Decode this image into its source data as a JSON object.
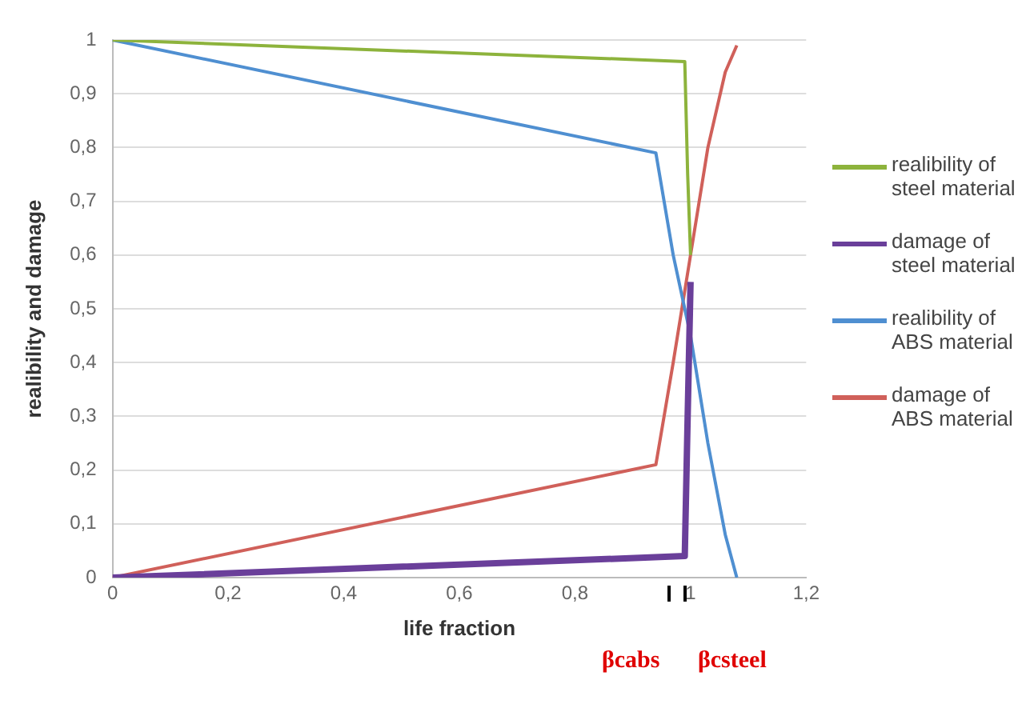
{
  "chart_data": {
    "type": "line",
    "xlabel": "life fraction",
    "ylabel": "realibility and damage",
    "xlim": [
      0,
      1.2
    ],
    "xticks": [
      0,
      {
        "value": 0.2,
        "label": "0,2"
      },
      {
        "value": 0.4,
        "label": "0,4"
      },
      {
        "value": 0.6,
        "label": "0,6"
      },
      {
        "value": 0.8,
        "label": "0,8"
      },
      1,
      {
        "value": 1.2,
        "label": "1,2"
      }
    ],
    "ylim": [
      0,
      1
    ],
    "yticks": [
      0,
      {
        "value": 0.1,
        "label": "0,1"
      },
      {
        "value": 0.2,
        "label": "0,2"
      },
      {
        "value": 0.3,
        "label": "0,3"
      },
      {
        "value": 0.4,
        "label": "0,4"
      },
      {
        "value": 0.5,
        "label": "0,5"
      },
      {
        "value": 0.6,
        "label": "0,6"
      },
      {
        "value": 0.7,
        "label": "0,7"
      },
      {
        "value": 0.8,
        "label": "0,8"
      },
      {
        "value": 0.9,
        "label": "0,9"
      },
      1
    ],
    "grid": "y",
    "legend": "right",
    "marker": "none",
    "line_style": "solid",
    "series": [
      {
        "name": "realibility of steel material",
        "color": "#8db33c",
        "x": [
          0,
          0.99,
          0.995,
          1.0
        ],
        "values": [
          1,
          0.96,
          0.75,
          0.6
        ]
      },
      {
        "name": "damage of steel material",
        "color": "#6a3f9a",
        "x": [
          0,
          0.99,
          0.995,
          1.0
        ],
        "values": [
          0,
          0.04,
          0.3,
          0.55
        ]
      },
      {
        "name": "realibility of ABS material",
        "color": "#4f8fd1",
        "x": [
          0,
          0.94,
          0.97,
          1.0,
          1.03,
          1.06,
          1.08
        ],
        "values": [
          1,
          0.79,
          0.6,
          0.45,
          0.25,
          0.08,
          0
        ]
      },
      {
        "name": "damage of ABS material",
        "color": "#d0605a",
        "x": [
          0,
          0.94,
          0.97,
          1.0,
          1.03,
          1.06,
          1.08
        ],
        "values": [
          0,
          0.21,
          0.4,
          0.6,
          0.8,
          0.94,
          0.99
        ]
      }
    ],
    "annotations": [
      "βcabs",
      "βcsteel"
    ]
  }
}
